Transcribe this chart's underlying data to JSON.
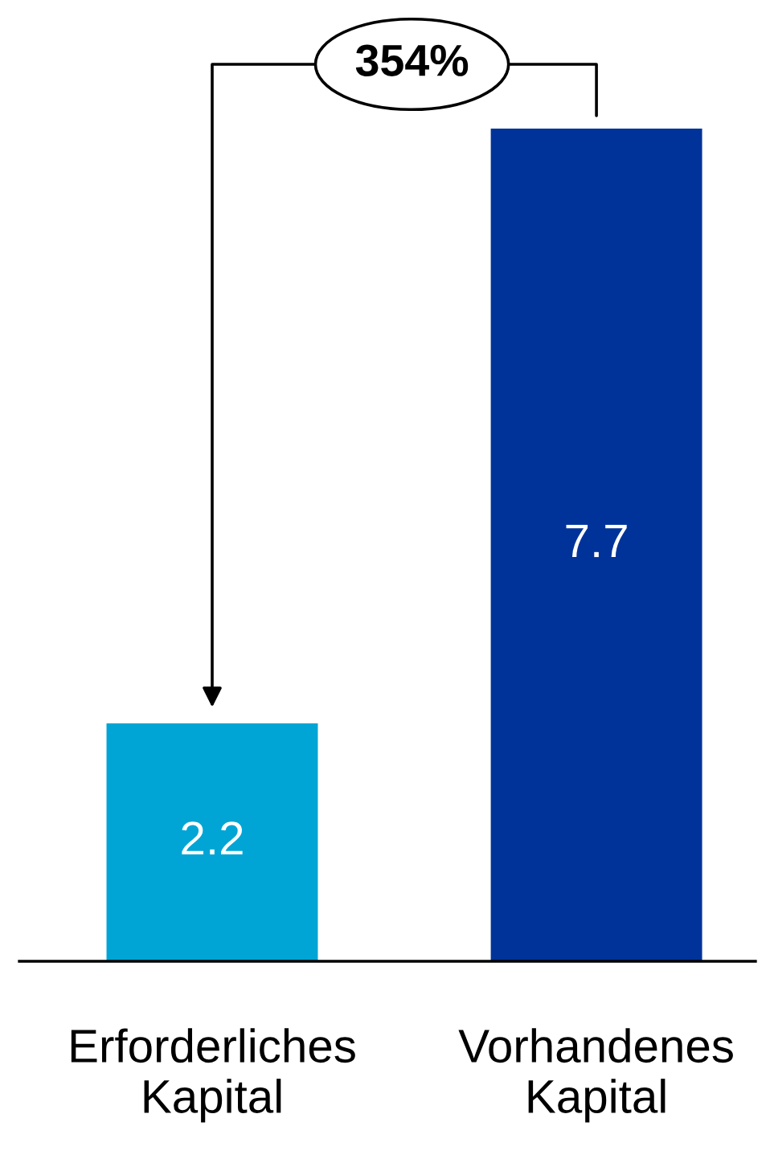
{
  "chart_data": {
    "type": "bar",
    "categories": [
      "Erforderliches\nKapital",
      "Vorhandenes\nKapital"
    ],
    "values": [
      2.2,
      7.7
    ],
    "colors": [
      "#00a5d5",
      "#003399"
    ],
    "data_labels": true,
    "annotations": [
      "354%"
    ],
    "grid": false,
    "legend": false
  }
}
